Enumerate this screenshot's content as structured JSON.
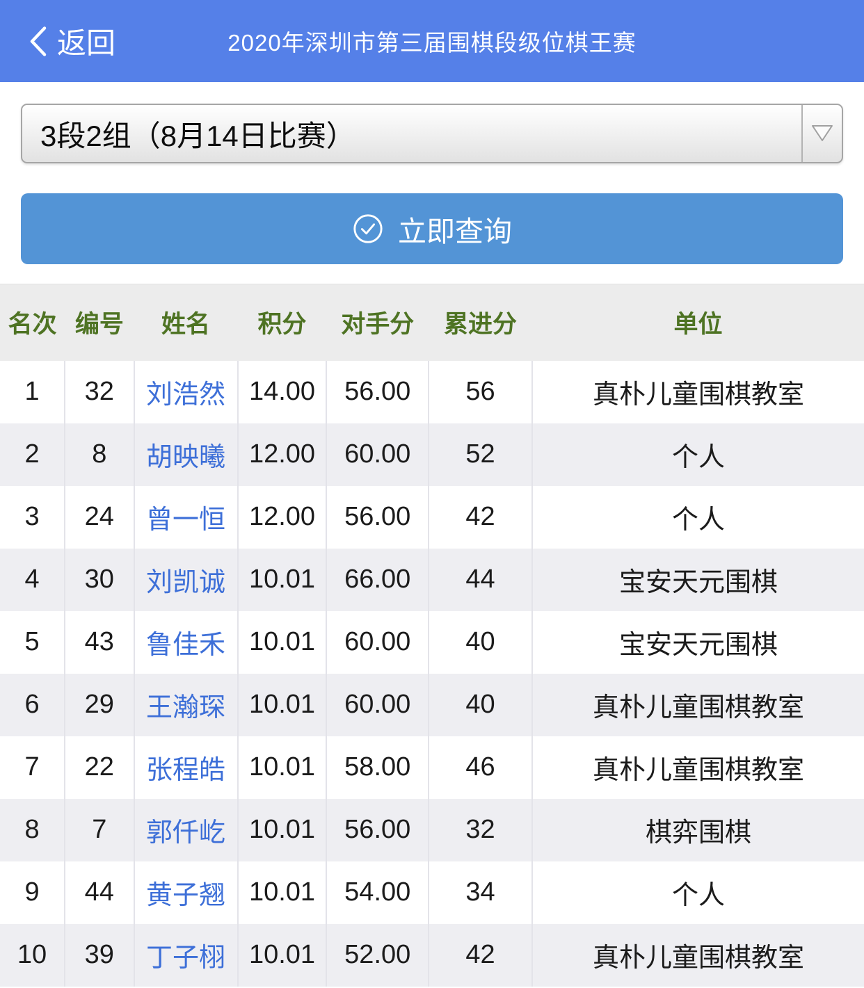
{
  "header": {
    "back_label": "返回",
    "title": "2020年深圳市第三届围棋段级位棋王赛"
  },
  "filter": {
    "selected_option": "3段2组（8月14日比赛）"
  },
  "query_button": {
    "label": "立即查询"
  },
  "table": {
    "columns": [
      "名次",
      "编号",
      "姓名",
      "积分",
      "对手分",
      "累进分",
      "单位"
    ],
    "rows": [
      {
        "rank": "1",
        "number": "32",
        "name": "刘浩然",
        "points": "14.00",
        "opponent_points": "56.00",
        "progressive": "56",
        "unit": "真朴儿童围棋教室"
      },
      {
        "rank": "2",
        "number": "8",
        "name": "胡映曦",
        "points": "12.00",
        "opponent_points": "60.00",
        "progressive": "52",
        "unit": "个人"
      },
      {
        "rank": "3",
        "number": "24",
        "name": "曾一恒",
        "points": "12.00",
        "opponent_points": "56.00",
        "progressive": "42",
        "unit": "个人"
      },
      {
        "rank": "4",
        "number": "30",
        "name": "刘凯诚",
        "points": "10.01",
        "opponent_points": "66.00",
        "progressive": "44",
        "unit": "宝安天元围棋"
      },
      {
        "rank": "5",
        "number": "43",
        "name": "鲁佳禾",
        "points": "10.01",
        "opponent_points": "60.00",
        "progressive": "40",
        "unit": "宝安天元围棋"
      },
      {
        "rank": "6",
        "number": "29",
        "name": "王瀚琛",
        "points": "10.01",
        "opponent_points": "60.00",
        "progressive": "40",
        "unit": "真朴儿童围棋教室"
      },
      {
        "rank": "7",
        "number": "22",
        "name": "张程皓",
        "points": "10.01",
        "opponent_points": "58.00",
        "progressive": "46",
        "unit": "真朴儿童围棋教室"
      },
      {
        "rank": "8",
        "number": "7",
        "name": "郭仟屹",
        "points": "10.01",
        "opponent_points": "56.00",
        "progressive": "32",
        "unit": "棋弈围棋"
      },
      {
        "rank": "9",
        "number": "44",
        "name": "黄子翘",
        "points": "10.01",
        "opponent_points": "54.00",
        "progressive": "34",
        "unit": "个人"
      },
      {
        "rank": "10",
        "number": "39",
        "name": "丁子栩",
        "points": "10.01",
        "opponent_points": "52.00",
        "progressive": "42",
        "unit": "真朴儿童围棋教室"
      }
    ]
  },
  "colors": {
    "topbar_blue": "#5580e8",
    "button_blue": "#5394d6",
    "link_blue": "#3d6fd8",
    "header_text_green": "#4e7323",
    "table_header_bg": "#ececec",
    "row_alt_bg": "#eeeef2"
  }
}
